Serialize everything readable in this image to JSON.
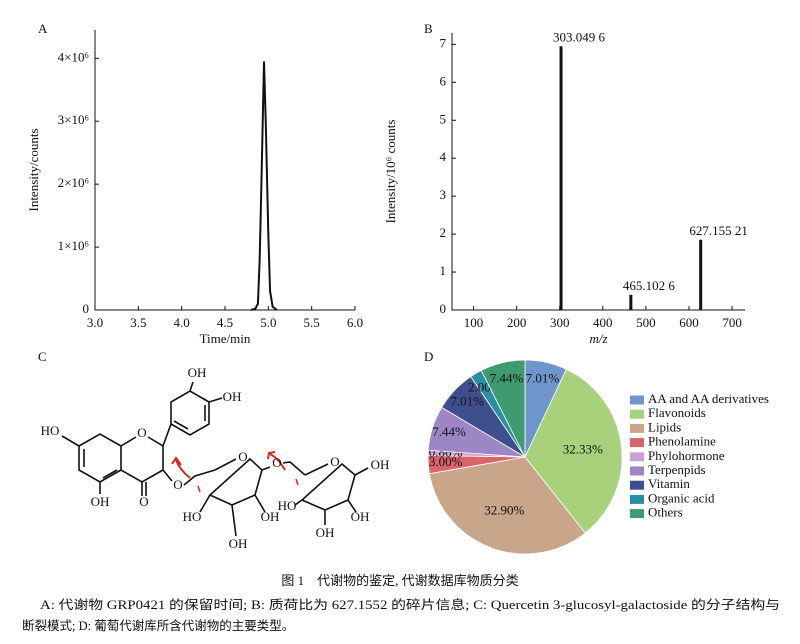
{
  "chart_data": [
    {
      "type": "line",
      "label": "A",
      "x_label": "Time/min",
      "y_label": "Intensity/counts",
      "x": [
        4.8,
        4.85,
        4.88,
        4.9,
        4.92,
        4.95,
        4.97,
        5.0,
        5.02,
        5.05,
        5.1
      ],
      "values": [
        0,
        20000,
        100000,
        800000,
        2000000,
        3950000,
        3000000,
        1200000,
        300000,
        50000,
        0
      ],
      "color": "#111111",
      "xlim": [
        3.0,
        6.0
      ],
      "ylim": [
        0,
        4450000
      ],
      "xticks": [
        {
          "value": 3,
          "label": "3.0"
        },
        {
          "value": 3.5,
          "label": "3.5"
        },
        {
          "value": 4,
          "label": "4.0"
        },
        {
          "value": 4.5,
          "label": "4.5"
        },
        {
          "value": 5,
          "label": "5.0"
        },
        {
          "value": 5.5,
          "label": "5.5"
        },
        {
          "value": 6,
          "label": "6.0"
        }
      ],
      "yticks": [
        0,
        {
          "value": 1000000,
          "label": "1×10⁶"
        },
        {
          "value": 2000000,
          "label": "2×10⁶"
        },
        {
          "value": 3000000,
          "label": "3×10⁶"
        },
        {
          "value": 4000000,
          "label": "4×10⁶"
        }
      ]
    },
    {
      "type": "stem",
      "label": "B",
      "x_label": "m/z",
      "y_label": "Intensity/10⁶ counts",
      "x": [
        303.0496,
        465.1026,
        627.15521
      ],
      "values": [
        6.95,
        0.4,
        1.85
      ],
      "x_labels": [
        "303.049 6",
        "465.102 6",
        "627.155 21"
      ],
      "color": "#111111",
      "xlim": [
        50,
        730
      ],
      "ylim": [
        0,
        7.3
      ],
      "xticks": [
        100,
        200,
        300,
        400,
        500,
        600,
        700
      ],
      "yticks": [
        0,
        1,
        2,
        3,
        4,
        5,
        6,
        7
      ]
    },
    {
      "type": "pie",
      "label": "D",
      "categories": [
        "AA and AA derivatives",
        "Flavonoids",
        "Lipids",
        "Phenolamine",
        "Phylohormone",
        "Terpenpids",
        "Vitamin",
        "Organic acid",
        "Others"
      ],
      "values": [
        7.01,
        32.33,
        32.9,
        3.0,
        0.86,
        7.44,
        7.01,
        2.0,
        7.44
      ],
      "value_labels": [
        "7.01%",
        "32.33%",
        "32.90%",
        "3.00%",
        "0.86%",
        "7.44%",
        "7.01%",
        "2.00%",
        "7.44%"
      ],
      "colors": [
        "#6f96cc",
        "#a8d17c",
        "#c9a68a",
        "#d9646c",
        "#c8a2d4",
        "#9c86c6",
        "#3f4f8e",
        "#2b8ea2",
        "#3e9b6f"
      ],
      "legend": "right"
    }
  ],
  "structure": {
    "label": "C",
    "atoms": [
      "OH",
      "OH",
      "HO",
      "O",
      "O",
      "OH",
      "O",
      "O",
      "HO",
      "OH",
      "OH",
      "O",
      "O",
      "OH",
      "OH",
      "OH",
      "HO"
    ]
  },
  "caption": {
    "title": "图 1　代谢物的鉴定, 代谢数据库物质分类",
    "lines": [
      "A: 代谢物 GRP0421 的保留时间; B: 质荷比为 627.1552 的碎片信息; C: Quercetin 3-glucosyl-galactoside 的分子结构与",
      "断裂模式; D: 葡萄代谢库所含代谢物的主要类型。"
    ]
  }
}
